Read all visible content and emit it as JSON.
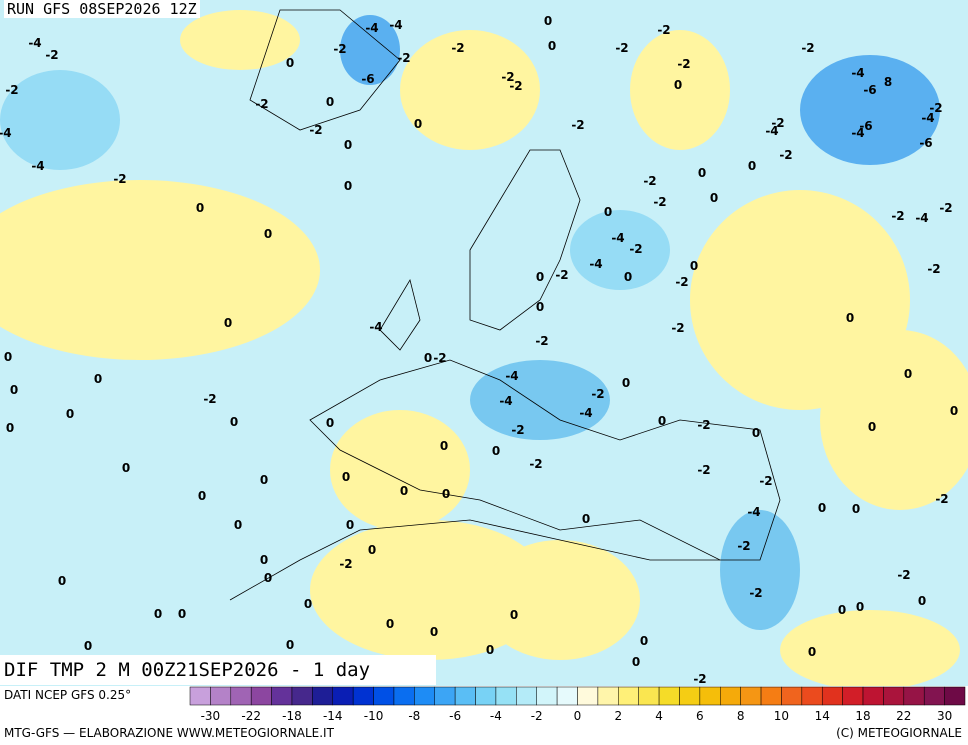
{
  "header": {
    "run": "RUN GFS 08SEP2026 12Z"
  },
  "map": {
    "caption": "DIF TMP 2 M 00Z21SEP2026 - 1 day",
    "labels": [
      -4,
      -2,
      -2,
      -4,
      -4,
      -2,
      0,
      0,
      0,
      0,
      0,
      0,
      0,
      0,
      -2,
      0,
      0,
      0,
      0,
      0,
      0,
      0,
      0,
      0,
      0,
      0,
      0,
      -2,
      0,
      0,
      0,
      0,
      0,
      0,
      0,
      0,
      0,
      -2,
      -2,
      -4,
      -4,
      -2,
      0,
      -2,
      -2,
      -4,
      -4,
      -2,
      -6,
      0,
      -2,
      0,
      -2,
      0,
      0,
      0,
      -2,
      -2,
      -2,
      0,
      0,
      -2,
      -2,
      -2,
      -2,
      0,
      -2,
      -4,
      -6,
      8,
      -2,
      -4,
      -2,
      -4,
      -6,
      -4,
      -6,
      -2,
      0,
      0,
      -2,
      -2,
      0,
      0,
      -4,
      -2,
      0,
      -4,
      -2,
      0,
      0,
      0,
      -2,
      -2,
      -4,
      0,
      -2,
      -4,
      -2,
      -2,
      0,
      0,
      0,
      -2,
      0,
      -4,
      0,
      -2,
      0,
      -2,
      -2,
      0,
      0,
      -2,
      -4,
      -2,
      -2,
      -2,
      0,
      0,
      0,
      0,
      0,
      0,
      0,
      -2,
      0,
      0,
      0,
      0
    ]
  },
  "legend": {
    "source": "DATI NCEP GFS 0.25°",
    "colors": [
      "#c8a0dc",
      "#b482c8",
      "#a064b4",
      "#8c46a0",
      "#64329a",
      "#46288c",
      "#1e1e96",
      "#0a1eb4",
      "#0032d2",
      "#0050e6",
      "#0a6ef0",
      "#1e8cf5",
      "#3ca5f5",
      "#5abef5",
      "#78d2f5",
      "#96e1f5",
      "#b4ebf8",
      "#d2f5fa",
      "#e6fafc",
      "#fffadc",
      "#fff5aa",
      "#fff078",
      "#fae650",
      "#f5dc28",
      "#f5cd14",
      "#f5be0a",
      "#f5aa0a",
      "#f59614",
      "#f57d14",
      "#f0641e",
      "#eb4b1e",
      "#e1321e",
      "#d21e28",
      "#be1432",
      "#aa143c",
      "#961446",
      "#821450",
      "#6e0a46"
    ],
    "ticks": [
      -30,
      -22,
      -18,
      -14,
      -10,
      -8,
      -6,
      -4,
      -2,
      0,
      2,
      4,
      6,
      8,
      10,
      14,
      18,
      22,
      30
    ]
  },
  "footer": {
    "left": "MTG-GFS — ELABORAZIONE WWW.METEOGIORNALE.IT",
    "right": "(C) METEOGIORNALE"
  }
}
